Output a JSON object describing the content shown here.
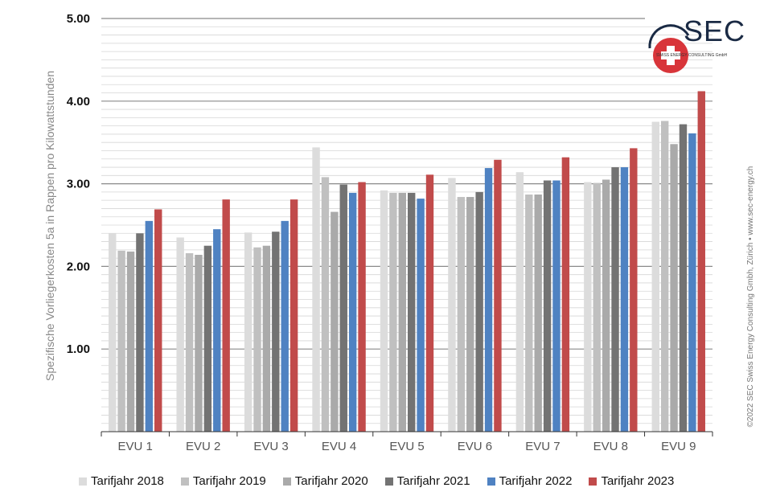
{
  "chart_data": {
    "type": "bar",
    "categories": [
      "EVU 1",
      "EVU 2",
      "EVU 3",
      "EVU 4",
      "EVU 5",
      "EVU 6",
      "EVU 7",
      "EVU 8",
      "EVU 9"
    ],
    "series": [
      {
        "name": "Tarifjahr 2018",
        "color": "#dcdcdc",
        "values": [
          2.4,
          2.35,
          2.41,
          3.44,
          2.92,
          3.07,
          3.14,
          3.02,
          3.75
        ]
      },
      {
        "name": "Tarifjahr 2019",
        "color": "#c0c0c0",
        "values": [
          2.19,
          2.16,
          2.23,
          3.08,
          2.89,
          2.84,
          2.87,
          3.01,
          3.76
        ]
      },
      {
        "name": "Tarifjahr 2020",
        "color": "#aaaaaa",
        "values": [
          2.18,
          2.14,
          2.25,
          2.66,
          2.89,
          2.84,
          2.87,
          3.05,
          3.48
        ]
      },
      {
        "name": "Tarifjahr 2021",
        "color": "#737373",
        "values": [
          2.4,
          2.25,
          2.42,
          2.99,
          2.89,
          2.9,
          3.04,
          3.2,
          3.72
        ]
      },
      {
        "name": "Tarifjahr 2022",
        "color": "#4f82c2",
        "values": [
          2.55,
          2.45,
          2.55,
          2.89,
          2.82,
          3.19,
          3.04,
          3.2,
          3.61
        ]
      },
      {
        "name": "Tarifjahr 2023",
        "color": "#c14b4b",
        "values": [
          2.69,
          2.81,
          2.81,
          3.02,
          3.11,
          3.29,
          3.32,
          3.43,
          4.12
        ]
      }
    ],
    "ylabel": "Spezifische Vorliegerkosten 5a in Rappen pro Kilowattstunden",
    "ylim": [
      0,
      5
    ],
    "yticks": [
      "1.00",
      "2.00",
      "3.00",
      "4.00",
      "5.00"
    ],
    "grid": true,
    "legend": "bottom"
  },
  "copyright": "©2022 SEC Swiss Energy Consulting Gmbh, Zürich • www.sec-energy.ch",
  "logo": {
    "text": "SEC",
    "subtitle": "SWISS ENERGY CONSULTING GmbH"
  }
}
